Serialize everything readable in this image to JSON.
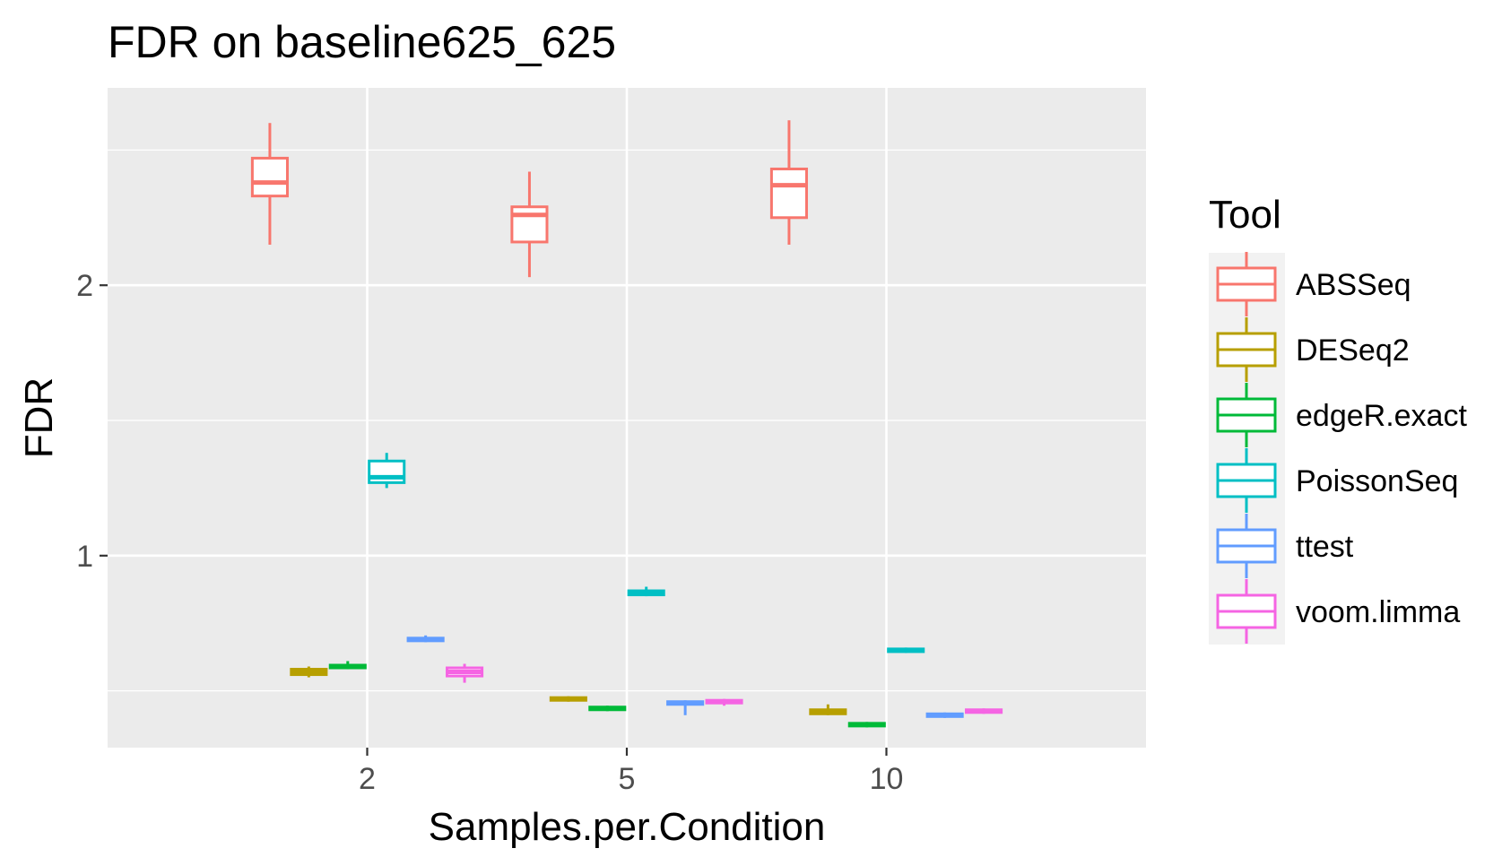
{
  "chart_data": {
    "type": "boxplot",
    "title": "FDR on baseline625_625",
    "xlabel": "Samples.per.Condition",
    "ylabel": "FDR",
    "categories": [
      "2",
      "5",
      "10"
    ],
    "y_ticks": [
      1,
      2
    ],
    "y_tick_labels": [
      "1",
      "2"
    ],
    "ylim": [
      0.29,
      2.73
    ],
    "grid": true,
    "legend": {
      "title": "Tool",
      "position": "right"
    },
    "series": [
      {
        "name": "ABSSeq",
        "color": "#F8766D",
        "boxes": [
          {
            "category": "2",
            "min": 2.15,
            "q1": 2.33,
            "median": 2.38,
            "q3": 2.47,
            "max": 2.6
          },
          {
            "category": "5",
            "min": 2.03,
            "q1": 2.16,
            "median": 2.26,
            "q3": 2.29,
            "max": 2.42
          },
          {
            "category": "10",
            "min": 2.15,
            "q1": 2.25,
            "median": 2.37,
            "q3": 2.43,
            "max": 2.61
          }
        ]
      },
      {
        "name": "DESeq2",
        "color": "#B79F00",
        "boxes": [
          {
            "category": "2",
            "min": 0.55,
            "q1": 0.56,
            "median": 0.57,
            "q3": 0.58,
            "max": 0.59
          },
          {
            "category": "5",
            "min": 0.46,
            "q1": 0.465,
            "median": 0.47,
            "q3": 0.475,
            "max": 0.48
          },
          {
            "category": "10",
            "min": 0.41,
            "q1": 0.415,
            "median": 0.42,
            "q3": 0.43,
            "max": 0.45
          }
        ]
      },
      {
        "name": "edgeR.exact",
        "color": "#00BA38",
        "boxes": [
          {
            "category": "2",
            "min": 0.58,
            "q1": 0.585,
            "median": 0.59,
            "q3": 0.595,
            "max": 0.61
          },
          {
            "category": "5",
            "min": 0.425,
            "q1": 0.43,
            "median": 0.435,
            "q3": 0.44,
            "max": 0.445
          },
          {
            "category": "10",
            "min": 0.365,
            "q1": 0.37,
            "median": 0.375,
            "q3": 0.38,
            "max": 0.385
          }
        ]
      },
      {
        "name": "PoissonSeq",
        "color": "#00BFC4",
        "boxes": [
          {
            "category": "2",
            "min": 1.25,
            "q1": 1.27,
            "median": 1.29,
            "q3": 1.35,
            "max": 1.38
          },
          {
            "category": "5",
            "min": 0.85,
            "q1": 0.855,
            "median": 0.86,
            "q3": 0.87,
            "max": 0.885
          },
          {
            "category": "10",
            "min": 0.64,
            "q1": 0.645,
            "median": 0.65,
            "q3": 0.655,
            "max": 0.66
          }
        ]
      },
      {
        "name": "ttest",
        "color": "#619CFF",
        "boxes": [
          {
            "category": "2",
            "min": 0.68,
            "q1": 0.685,
            "median": 0.69,
            "q3": 0.695,
            "max": 0.705
          },
          {
            "category": "5",
            "min": 0.41,
            "q1": 0.45,
            "median": 0.455,
            "q3": 0.46,
            "max": 0.465
          },
          {
            "category": "10",
            "min": 0.4,
            "q1": 0.405,
            "median": 0.41,
            "q3": 0.415,
            "max": 0.42
          }
        ]
      },
      {
        "name": "voom.limma",
        "color": "#F564E3",
        "boxes": [
          {
            "category": "2",
            "min": 0.53,
            "q1": 0.555,
            "median": 0.57,
            "q3": 0.585,
            "max": 0.6
          },
          {
            "category": "5",
            "min": 0.445,
            "q1": 0.455,
            "median": 0.46,
            "q3": 0.465,
            "max": 0.47
          },
          {
            "category": "10",
            "min": 0.415,
            "q1": 0.42,
            "median": 0.425,
            "q3": 0.43,
            "max": 0.435
          }
        ]
      }
    ]
  }
}
